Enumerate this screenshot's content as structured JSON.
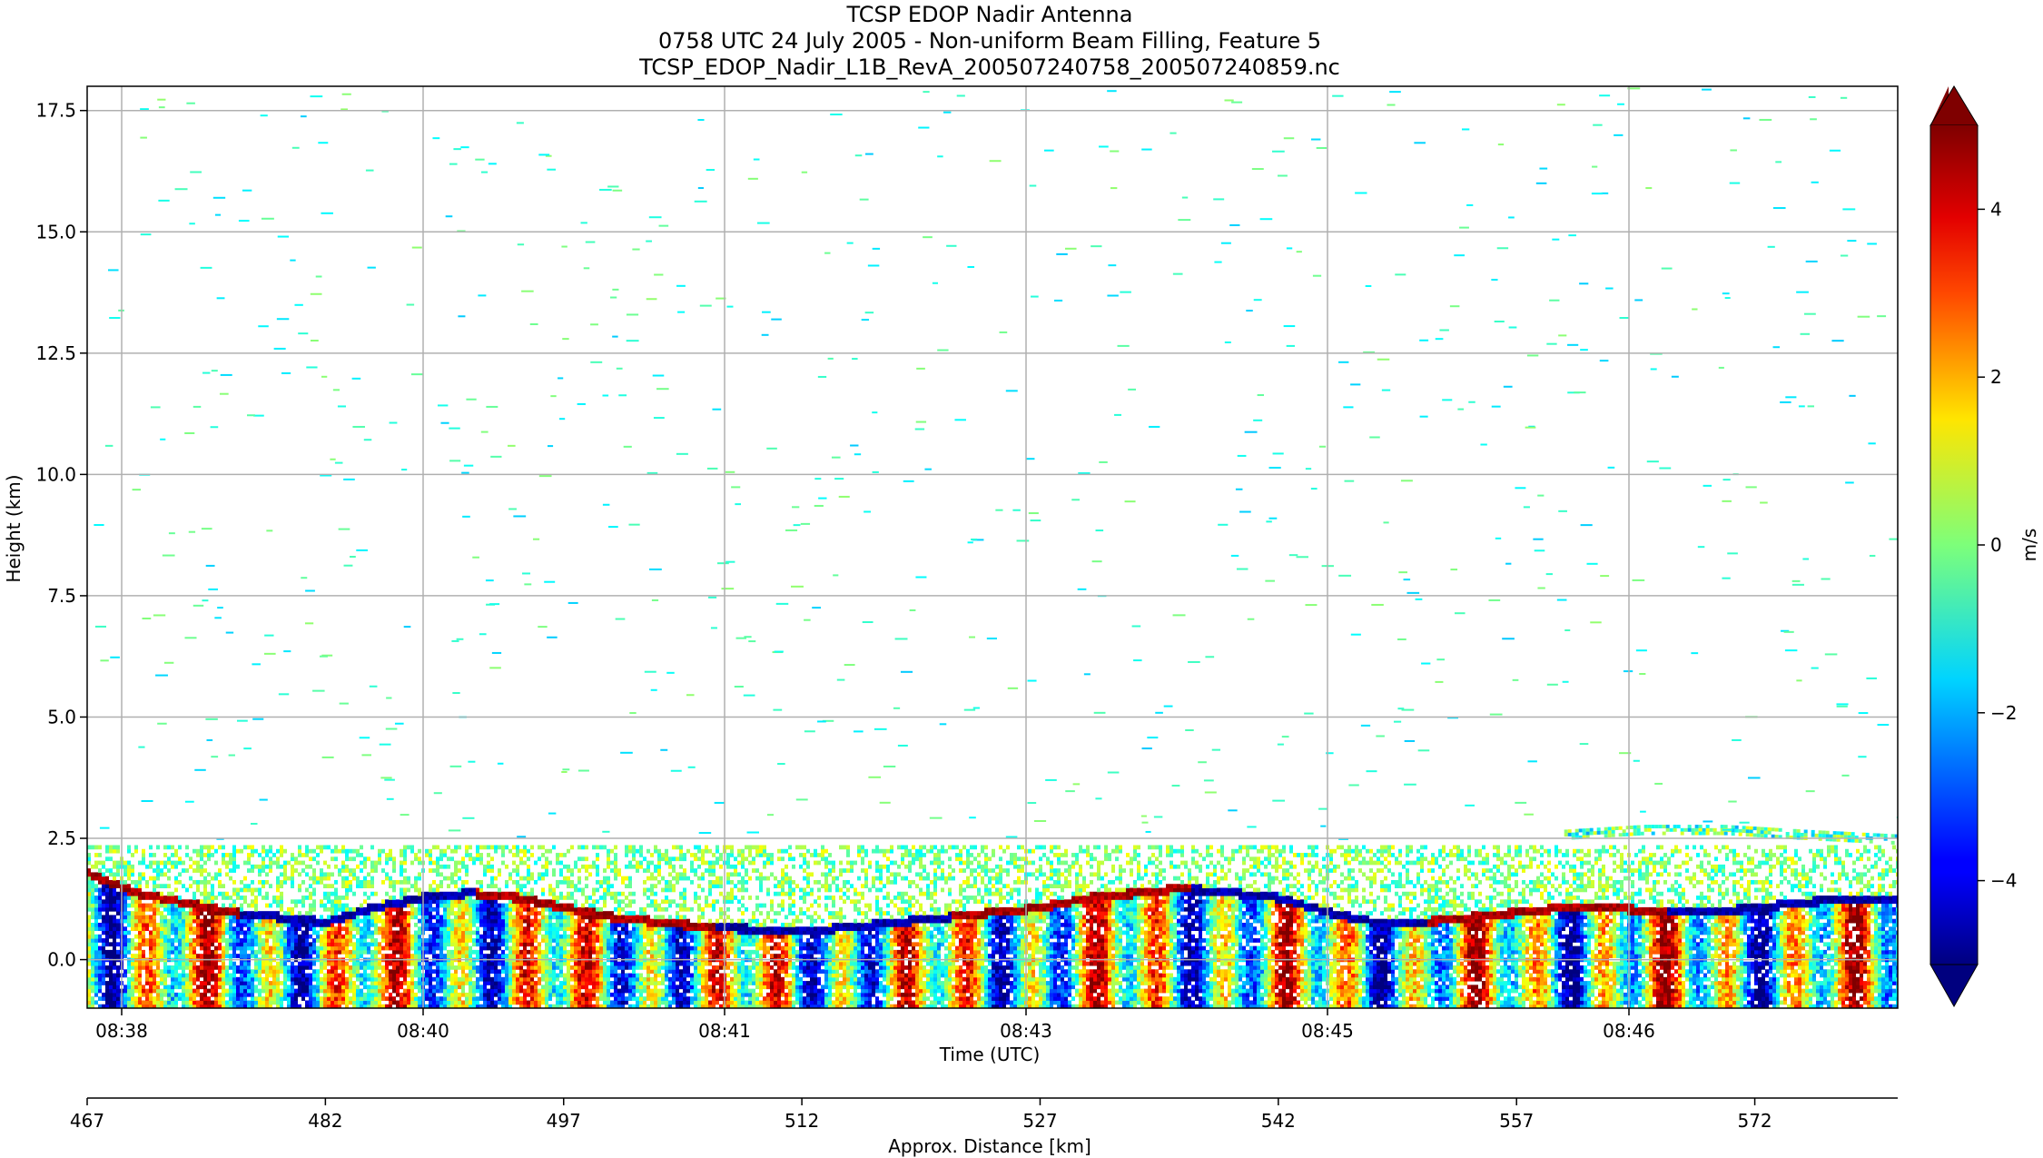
{
  "chart_data": {
    "type": "heatmap",
    "title": "TCSP EDOP Nadir Antenna",
    "subtitle": "0758 UTC 24 July 2005 - Non-uniform Beam Filling, Feature 5",
    "filename": "TCSP_EDOP_Nadir_L1B_RevA_200507240758_200507240859.nc",
    "ylabel": "Height (km)",
    "xlabel": "Time (UTC)",
    "x2label": "Approx. Distance [km]",
    "ylim": [
      -1.0,
      18.0
    ],
    "y_ticks": [
      0.0,
      2.5,
      5.0,
      7.5,
      10.0,
      12.5,
      15.0,
      17.5
    ],
    "y_tick_labels": [
      "0.0",
      "2.5",
      "5.0",
      "7.5",
      "10.0",
      "12.5",
      "15.0",
      "17.5"
    ],
    "x_tick_labels": [
      "08:38",
      "08:40",
      "08:41",
      "08:43",
      "08:45",
      "08:46"
    ],
    "x2_tick_labels": [
      "467",
      "482",
      "497",
      "512",
      "527",
      "542",
      "557",
      "572"
    ],
    "grid": true,
    "colorbar": {
      "label": "m/s",
      "range": [
        -5,
        5
      ],
      "ticks": [
        4,
        2,
        0,
        -2,
        -4
      ],
      "tick_labels": [
        "4",
        "2",
        "0",
        "−2",
        "−4"
      ],
      "colormap": "jet",
      "extend": "both"
    },
    "surface_profile": {
      "distance_km": [
        467,
        470,
        473,
        476,
        479,
        482,
        485,
        488,
        491,
        494,
        497,
        500,
        503,
        506,
        509,
        512,
        515,
        518,
        521,
        524,
        527,
        530,
        533,
        536,
        539,
        542,
        545,
        548,
        551,
        554,
        557,
        560,
        563,
        566,
        569,
        572,
        575,
        578,
        581
      ],
      "height_km": [
        1.7,
        1.3,
        1.1,
        0.9,
        0.8,
        0.7,
        1.0,
        1.2,
        1.3,
        1.2,
        1.0,
        0.8,
        0.7,
        0.6,
        0.55,
        0.5,
        0.6,
        0.7,
        0.8,
        0.9,
        1.0,
        1.2,
        1.3,
        1.4,
        1.3,
        1.2,
        0.9,
        0.7,
        0.7,
        0.8,
        0.9,
        1.0,
        1.0,
        0.9,
        0.9,
        1.0,
        1.1,
        1.2,
        1.2
      ]
    },
    "upper_layer": {
      "distance_km": [
        560,
        565,
        570,
        575,
        581
      ],
      "height_km": [
        2.6,
        2.7,
        2.7,
        2.6,
        2.5
      ]
    }
  }
}
